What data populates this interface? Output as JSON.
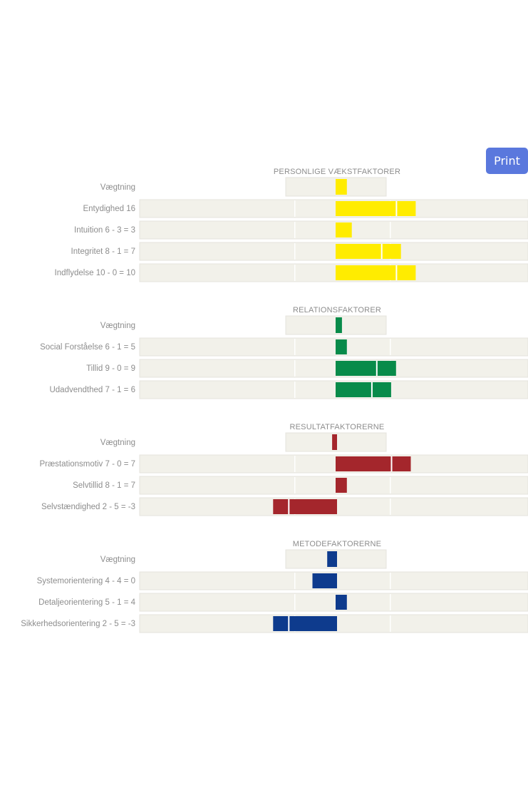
{
  "print_button": {
    "label": "Print"
  },
  "chart_data": {
    "type": "bar",
    "orientation": "horizontal-diverging",
    "baseline": 0,
    "colors": {
      "personlige": "#ffec00",
      "relation": "#088b4a",
      "resultat": "#a4262c",
      "metode": "#0e3b8d",
      "track": "#f2f1ea"
    },
    "sections": [
      {
        "title": "PERSONLIGE VÆKSTFAKTORER",
        "color_key": "personlige",
        "weighting": {
          "label": "Vægtning",
          "value": 2
        },
        "rows": [
          {
            "label": "Entydighed 16",
            "value": 16
          },
          {
            "label": "Intuition 6 - 3 = 3",
            "value": 3
          },
          {
            "label": "Integritet 8 - 1 = 7",
            "value": 13
          },
          {
            "label": "Indflydelse 10 - 0 = 10",
            "value": 16
          }
        ]
      },
      {
        "title": "RELATIONSFAKTORER",
        "color_key": "relation",
        "weighting": {
          "label": "Vægtning",
          "value": 1
        },
        "rows": [
          {
            "label": "Social Forståelse 6 - 1 = 5",
            "value": 2
          },
          {
            "label": "Tillid 9 - 0 = 9",
            "value": 12
          },
          {
            "label": "Udadvendthed 7 - 1 = 6",
            "value": 11
          }
        ]
      },
      {
        "title": "RESULTATFAKTORERNE",
        "color_key": "resultat",
        "weighting": {
          "label": "Vægtning",
          "value": -1
        },
        "rows": [
          {
            "label": "Præstationsmotiv 7 - 0 = 7",
            "value": 15
          },
          {
            "label": "Selvtillid 8 - 1 = 7",
            "value": 2
          },
          {
            "label": "Selvstændighed 2 - 5 = -3",
            "value": -13
          }
        ]
      },
      {
        "title": "METODEFAKTORERNE",
        "color_key": "metode",
        "weighting": {
          "label": "Vægtning",
          "value": -2
        },
        "rows": [
          {
            "label": "Systemorientering 4 - 4 = 0",
            "value": -5
          },
          {
            "label": "Detaljeorientering 5 - 1 = 4",
            "value": 2
          },
          {
            "label": "Sikkerhedsorientering 2 - 5 = -3",
            "value": -13
          }
        ]
      }
    ]
  }
}
